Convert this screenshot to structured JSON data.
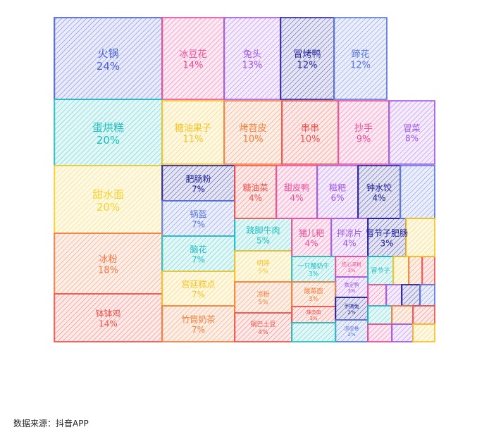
{
  "chart_data": {
    "type": "treemap",
    "title": "",
    "source_text": "数据来源：抖音APP",
    "cells": [
      {
        "name": "火锅",
        "value": "24%",
        "color": "#4a5fd6"
      },
      {
        "name": "冰豆花",
        "value": "14%",
        "color": "#ef4d9a"
      },
      {
        "name": "兔头",
        "value": "13%",
        "color": "#a35ae6"
      },
      {
        "name": "冒烤鸭",
        "value": "12%",
        "color": "#2a2aa8"
      },
      {
        "name": "蹄花",
        "value": "12%",
        "color": "#5e78e0"
      },
      {
        "name": "蛋烘糕",
        "value": "20%",
        "color": "#22c1c3"
      },
      {
        "name": "糖油果子",
        "value": "11%",
        "color": "#f7c525"
      },
      {
        "name": "烤苕皮",
        "value": "10%",
        "color": "#f3813e"
      },
      {
        "name": "串串",
        "value": "10%",
        "color": "#f2544c"
      },
      {
        "name": "抄手",
        "value": "9%",
        "color": "#ef4d9a"
      },
      {
        "name": "冒菜",
        "value": "8%",
        "color": "#a35ae6"
      },
      {
        "name": "甜水面",
        "value": "20%",
        "color": "#f7d22f"
      },
      {
        "name": "肥肠粉",
        "value": "7%",
        "color": "#1f1f9e"
      },
      {
        "name": "锅盔",
        "value": "7%",
        "color": "#5e78e0"
      },
      {
        "name": "冰粉",
        "value": "18%",
        "color": "#f47a45"
      },
      {
        "name": "脑花",
        "value": "7%",
        "color": "#22c1c3"
      },
      {
        "name": "跷脚牛肉",
        "value": "5%",
        "color": "#22c1c3"
      },
      {
        "name": "明婷",
        "value": "5%",
        "color": "#f7c525"
      },
      {
        "name": "钵钵鸡",
        "value": "14%",
        "color": "#f2544c"
      },
      {
        "name": "宫廷糕点",
        "value": "7%",
        "color": "#f7c525"
      },
      {
        "name": "凉粉",
        "value": "5%",
        "color": "#f3813e"
      },
      {
        "name": "竹筒奶茶",
        "value": "7%",
        "color": "#f3813e"
      },
      {
        "name": "锅巴土豆",
        "value": "4%",
        "color": "#f2544c"
      },
      {
        "name": "糖油菜",
        "value": "4%",
        "color": "#f2544c"
      },
      {
        "name": "甜皮鸭",
        "value": "4%",
        "color": "#ef4d9a"
      },
      {
        "name": "糍粑",
        "value": "6%",
        "color": "#a35ae6"
      },
      {
        "name": "钟水饺",
        "value": "4%",
        "color": "#1f1f9e"
      },
      {
        "name": "猪儿粑",
        "value": "4%",
        "color": "#ef4d9a"
      },
      {
        "name": "拌凉片",
        "value": "4%",
        "color": "#a35ae6"
      },
      {
        "name": "冒节子肥肠",
        "value": "3%",
        "color": "#1f1f9e"
      },
      {
        "name": "一只酸奶牛",
        "value": "3%",
        "color": "#22c1c3"
      },
      {
        "name": "伤心凉粉",
        "value": "3%",
        "color": "#ef4d9a"
      },
      {
        "name": "嘉定鸭",
        "value": "3%",
        "color": "#a35ae6"
      },
      {
        "name": "酸菜面",
        "value": "3%",
        "color": "#f3813e"
      },
      {
        "name": "辣烫面",
        "value": "3%",
        "color": "#f2544c"
      },
      {
        "name": "手撕兔",
        "value": "2%",
        "color": "#1f1f9e"
      },
      {
        "name": "凉皮卷",
        "value": "2%",
        "color": "#5e78e0"
      },
      {
        "name": "冒节子",
        "value": "",
        "color": "#22c1c3"
      },
      {
        "name": "",
        "value": "",
        "color": "#5e78e0"
      }
    ],
    "filler_colors": [
      "#f7c525",
      "#f3813e",
      "#f2544c",
      "#22c1c3",
      "#ef4d9a",
      "#a35ae6",
      "#1f1f9e",
      "#5e78e0",
      "#22c1c3",
      "#f3813e",
      "#f2544c",
      "#ef4d9a",
      "#a35ae6",
      "#f7c525"
    ]
  }
}
